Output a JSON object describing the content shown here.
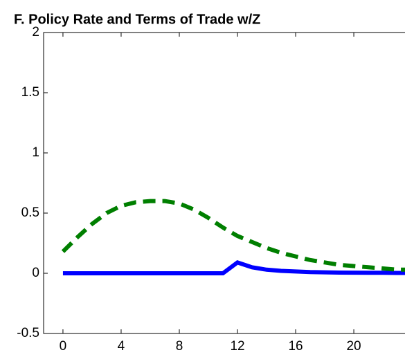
{
  "chart_data": {
    "type": "line",
    "title": "F. Policy Rate and Terms of Trade w/Z",
    "x": [
      0,
      1,
      2,
      3,
      4,
      5,
      6,
      7,
      8,
      9,
      10,
      11,
      12,
      13,
      14,
      15,
      16,
      17,
      18,
      19,
      20,
      21,
      22,
      23,
      24
    ],
    "series": [
      {
        "color": "#0000ff",
        "dashed": false,
        "values": [
          0,
          0,
          0,
          0,
          0,
          0,
          0,
          0,
          0,
          0,
          0,
          0,
          0.09,
          0.05,
          0.03,
          0.02,
          0.015,
          0.01,
          0.008,
          0.006,
          0.005,
          0.004,
          0.004,
          0.003,
          0.003
        ]
      },
      {
        "color": "#007f00",
        "dashed": true,
        "values": [
          0.18,
          0.3,
          0.41,
          0.5,
          0.56,
          0.59,
          0.6,
          0.6,
          0.58,
          0.53,
          0.46,
          0.38,
          0.31,
          0.26,
          0.21,
          0.17,
          0.14,
          0.11,
          0.09,
          0.07,
          0.06,
          0.05,
          0.04,
          0.03,
          0.03
        ]
      }
    ],
    "xlim": [
      -1.33,
      23.52
    ],
    "xticks": [
      0,
      4,
      8,
      12,
      16,
      20
    ],
    "ylim": [
      -0.5,
      2
    ],
    "yticks": [
      -0.5,
      0,
      0.5,
      1,
      1.5,
      2
    ],
    "grid": false
  }
}
